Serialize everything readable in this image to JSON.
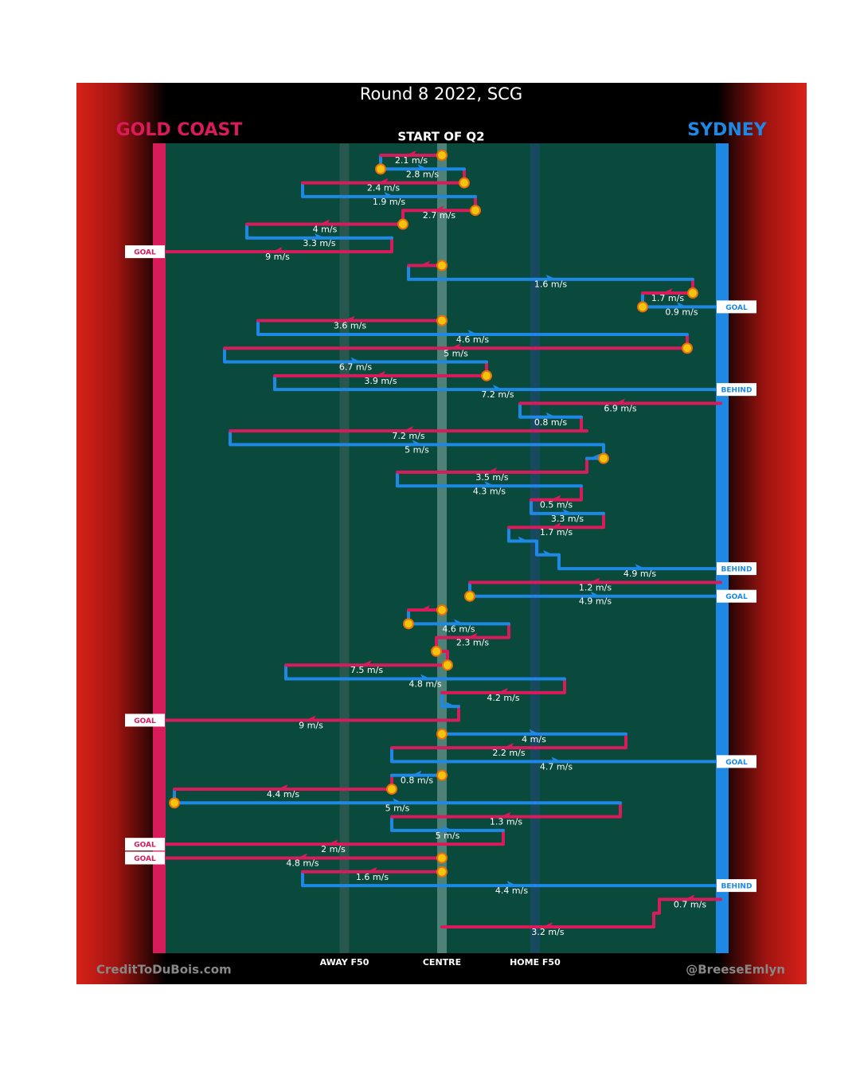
{
  "chart_data": {
    "type": "chain",
    "title": "Round 8 2022, SCG",
    "subtitle": "START OF Q2",
    "teams": [
      {
        "name": "GOLD COAST",
        "color": "#d81b5a"
      },
      {
        "name": "SYDNEY",
        "color": "#1e88e5"
      }
    ],
    "xlim": [
      0,
      100
    ],
    "xticks": [
      {
        "value": 32.5,
        "label": "AWAY F50"
      },
      {
        "value": 50,
        "label": "CENTRE"
      },
      {
        "value": 66.7,
        "label": "HOME F50"
      }
    ],
    "credits": [
      "CreditToDuBois.com",
      "@BreeseEmlyn"
    ],
    "kicks": [
      {
        "team": 0,
        "from": 50,
        "to": 39,
        "speed": 2.1,
        "speed_label": "2.1 m/s",
        "stoppage": true
      },
      {
        "team": 1,
        "from": 39,
        "to": 54,
        "speed": 2.8,
        "speed_label": "2.8 m/s",
        "stoppage": true
      },
      {
        "team": 0,
        "from": 54,
        "to": 25,
        "speed": 2.4,
        "speed_label": "2.4 m/s",
        "stoppage": true
      },
      {
        "team": 1,
        "from": 25,
        "to": 56,
        "speed": 1.9,
        "speed_label": "1.9 m/s"
      },
      {
        "team": 0,
        "from": 56,
        "to": 43,
        "speed": 2.7,
        "speed_label": "2.7 m/s",
        "stoppage": true
      },
      {
        "team": 0,
        "from": 43,
        "to": 15,
        "speed": 4,
        "speed_label": "4 m/s",
        "stoppage": true
      },
      {
        "team": 1,
        "from": 15,
        "to": 41,
        "speed": 3.3,
        "speed_label": "3.3 m/s"
      },
      {
        "team": 0,
        "from": 41,
        "to": 0,
        "speed": 9,
        "speed_label": "9 m/s",
        "result": "GOAL"
      },
      {
        "team": 0,
        "from": 50,
        "to": 44,
        "stoppage": true
      },
      {
        "team": 1,
        "from": 44,
        "to": 95,
        "speed": 1.6,
        "speed_label": "1.6 m/s"
      },
      {
        "team": 0,
        "from": 95,
        "to": 86,
        "speed": 1.7,
        "speed_label": "1.7 m/s",
        "stoppage": true
      },
      {
        "team": 1,
        "from": 86,
        "to": 100,
        "speed": 0.9,
        "speed_label": "0.9 m/s",
        "stoppage": true,
        "result": "GOAL"
      },
      {
        "team": 0,
        "from": 50,
        "to": 17,
        "speed": 3.6,
        "speed_label": "3.6 m/s",
        "stoppage": true
      },
      {
        "team": 1,
        "from": 17,
        "to": 94,
        "speed": 4.6,
        "speed_label": "4.6 m/s"
      },
      {
        "team": 0,
        "from": 94,
        "to": 11,
        "speed": 5,
        "speed_label": "5 m/s",
        "stoppage": true
      },
      {
        "team": 1,
        "from": 11,
        "to": 58,
        "speed": 6.7,
        "speed_label": "6.7 m/s"
      },
      {
        "team": 0,
        "from": 58,
        "to": 20,
        "speed": 3.9,
        "speed_label": "3.9 m/s",
        "stoppage": true
      },
      {
        "team": 1,
        "from": 20,
        "to": 100,
        "speed": 7.2,
        "speed_label": "7.2 m/s",
        "result": "BEHIND"
      },
      {
        "team": 0,
        "from": 100,
        "to": 64,
        "speed": 6.9,
        "speed_label": "6.9 m/s"
      },
      {
        "team": 1,
        "from": 64,
        "to": 75,
        "speed": 0.8,
        "speed_label": "0.8 m/s"
      },
      {
        "team": 0,
        "from": 76,
        "to": 12,
        "speed": 7.2,
        "speed_label": "7.2 m/s"
      },
      {
        "team": 1,
        "from": 12,
        "to": 79,
        "speed": 5,
        "speed_label": "5 m/s"
      },
      {
        "team": 1,
        "from": 79,
        "to": 76,
        "stoppage": true
      },
      {
        "team": 0,
        "from": 76,
        "to": 42,
        "speed": 3.5,
        "speed_label": "3.5 m/s"
      },
      {
        "team": 1,
        "from": 42,
        "to": 75,
        "speed": 4.3,
        "speed_label": "4.3 m/s"
      },
      {
        "team": 0,
        "from": 75,
        "to": 66,
        "speed": 0.5,
        "speed_label": "0.5 m/s"
      },
      {
        "team": 1,
        "from": 66,
        "to": 79,
        "speed": 3.3,
        "speed_label": "3.3 m/s"
      },
      {
        "team": 0,
        "from": 79,
        "to": 62,
        "speed": 1.7,
        "speed_label": "1.7 m/s"
      },
      {
        "team": 1,
        "from": 62,
        "to": 67
      },
      {
        "team": 1,
        "from": 67,
        "to": 71
      },
      {
        "team": 1,
        "from": 71,
        "to": 100,
        "speed": 4.9,
        "speed_label": "4.9 m/s",
        "result": "BEHIND"
      },
      {
        "team": 0,
        "from": 100,
        "to": 55,
        "speed": 1.2,
        "speed_label": "1.2 m/s"
      },
      {
        "team": 1,
        "from": 55,
        "to": 100,
        "speed": 4.9,
        "speed_label": "4.9 m/s",
        "stoppage": true,
        "result": "GOAL"
      },
      {
        "team": 0,
        "from": 50,
        "to": 44,
        "stoppage": true
      },
      {
        "team": 1,
        "from": 44,
        "to": 62,
        "speed": 4.6,
        "speed_label": "4.6 m/s",
        "stoppage": true
      },
      {
        "team": 0,
        "from": 62,
        "to": 49,
        "speed": 2.3,
        "speed_label": "2.3 m/s"
      },
      {
        "team": 0,
        "from": 49,
        "to": 51,
        "stoppage": true
      },
      {
        "team": 0,
        "from": 51,
        "to": 22,
        "speed": 7.5,
        "speed_label": "7.5 m/s",
        "stoppage": true
      },
      {
        "team": 1,
        "from": 22,
        "to": 72,
        "speed": 4.8,
        "speed_label": "4.8 m/s"
      },
      {
        "team": 0,
        "from": 72,
        "to": 50,
        "speed": 4.2,
        "speed_label": "4.2 m/s"
      },
      {
        "team": 1,
        "from": 50,
        "to": 53
      },
      {
        "team": 0,
        "from": 53,
        "to": 0,
        "speed": 9,
        "speed_label": "9 m/s",
        "result": "GOAL"
      },
      {
        "team": 1,
        "from": 50,
        "to": 83,
        "speed": 4,
        "speed_label": "4 m/s",
        "stoppage": true
      },
      {
        "team": 0,
        "from": 83,
        "to": 41,
        "speed": 2.2,
        "speed_label": "2.2 m/s"
      },
      {
        "team": 1,
        "from": 41,
        "to": 100,
        "speed": 4.7,
        "speed_label": "4.7 m/s",
        "result": "GOAL"
      },
      {
        "team": 1,
        "from": 50,
        "to": 41,
        "speed": 0.8,
        "speed_label": "0.8 m/s",
        "stoppage": true
      },
      {
        "team": 0,
        "from": 41,
        "to": 2,
        "speed": 4.4,
        "speed_label": "4.4 m/s",
        "stoppage": true
      },
      {
        "team": 1,
        "from": 2,
        "to": 82,
        "speed": 5,
        "speed_label": "5 m/s",
        "stoppage": true
      },
      {
        "team": 0,
        "from": 82,
        "to": 41,
        "speed": 1.3,
        "speed_label": "1.3 m/s"
      },
      {
        "team": 1,
        "from": 41,
        "to": 61,
        "speed": 5,
        "speed_label": "5 m/s"
      },
      {
        "team": 0,
        "from": 61,
        "to": 0,
        "speed": 2,
        "speed_label": "2 m/s",
        "result": "GOAL"
      },
      {
        "team": 0,
        "from": 50,
        "to": 0,
        "speed": 4.8,
        "speed_label": "4.8 m/s",
        "stoppage": true,
        "result": "GOAL"
      },
      {
        "team": 0,
        "from": 50,
        "to": 25,
        "speed": 1.6,
        "speed_label": "1.6 m/s",
        "stoppage": true
      },
      {
        "team": 1,
        "from": 25,
        "to": 100,
        "speed": 4.4,
        "speed_label": "4.4 m/s",
        "result": "BEHIND"
      },
      {
        "team": 0,
        "from": 100,
        "to": 89,
        "speed": 0.7,
        "speed_label": "0.7 m/s"
      },
      {
        "team": 0,
        "from": 89,
        "to": 88
      },
      {
        "team": 0,
        "from": 88,
        "to": 50,
        "speed": 3.2,
        "speed_label": "3.2 m/s"
      }
    ]
  }
}
